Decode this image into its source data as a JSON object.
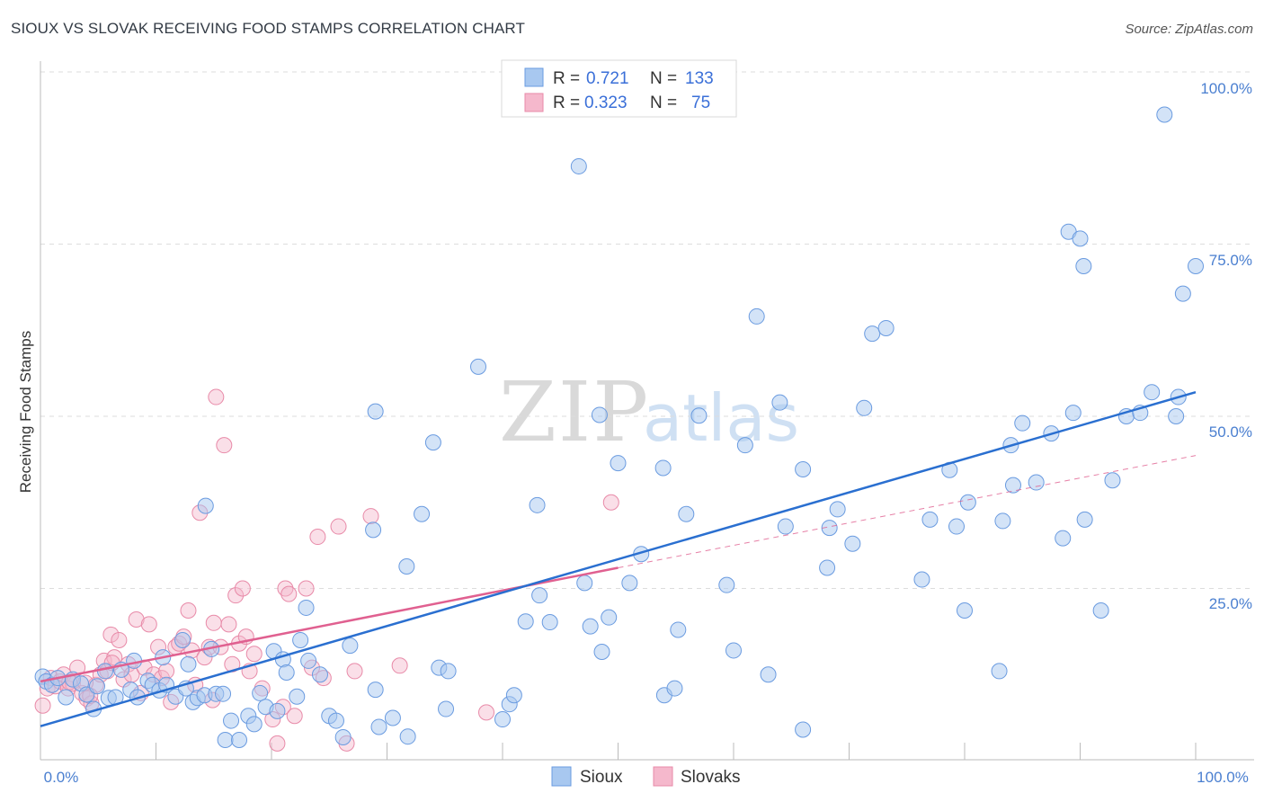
{
  "title": "SIOUX VS SLOVAK RECEIVING FOOD STAMPS CORRELATION CHART",
  "source": "Source: ZipAtlas.com",
  "watermark": {
    "zip": "ZIP",
    "atlas": "atlas"
  },
  "colors": {
    "sioux_fill": "#a8c8f0",
    "sioux_stroke": "#6a9be0",
    "sioux_line": "#2a6fd0",
    "slovaks_fill": "#f5b8cc",
    "slovaks_stroke": "#e88aa8",
    "slovaks_line": "#e06090",
    "tick": "#4a7fd0",
    "grid": "#dddddd"
  },
  "legend": {
    "rows": [
      {
        "r_label": "R =",
        "r_value": "0.721",
        "n_label": "N =",
        "n_value": "133"
      },
      {
        "r_label": "R =",
        "r_value": "0.323",
        "n_label": "N =",
        "n_value": "75"
      }
    ]
  },
  "bottom_legend": {
    "sioux": "Sioux",
    "slovaks": "Slovaks"
  },
  "chart_data": {
    "type": "scatter",
    "title": "SIOUX VS SLOVAK RECEIVING FOOD STAMPS CORRELATION CHART",
    "xlabel": "",
    "ylabel": "Receiving Food Stamps",
    "xlim": [
      0,
      100
    ],
    "ylim": [
      0,
      100
    ],
    "x_tick_labels": [
      "0.0%",
      "100.0%"
    ],
    "y_tick_labels": [
      "100.0%",
      "75.0%",
      "50.0%",
      "25.0%"
    ],
    "y_ticks": [
      100,
      75,
      50,
      25
    ],
    "grid": true,
    "series": [
      {
        "name": "Sioux",
        "r": 0.721,
        "n": 133,
        "trend": {
          "x": [
            0,
            100
          ],
          "y": [
            5.0,
            53.5
          ]
        },
        "points": [
          [
            0.2,
            12.2
          ],
          [
            0.5,
            11.5
          ],
          [
            1.0,
            11.0
          ],
          [
            1.5,
            12.0
          ],
          [
            2.2,
            9.2
          ],
          [
            2.8,
            11.8
          ],
          [
            3.5,
            11.2
          ],
          [
            4.0,
            9.6
          ],
          [
            4.6,
            7.5
          ],
          [
            4.9,
            10.8
          ],
          [
            5.6,
            13.0
          ],
          [
            5.9,
            9.1
          ],
          [
            6.5,
            9.2
          ],
          [
            7.0,
            13.2
          ],
          [
            7.8,
            10.3
          ],
          [
            8.1,
            14.5
          ],
          [
            8.4,
            9.2
          ],
          [
            9.3,
            11.6
          ],
          [
            9.7,
            11.0
          ],
          [
            10.3,
            10.2
          ],
          [
            10.6,
            15.0
          ],
          [
            10.9,
            11.0
          ],
          [
            11.7,
            9.3
          ],
          [
            12.3,
            17.5
          ],
          [
            12.6,
            10.5
          ],
          [
            12.8,
            14.0
          ],
          [
            13.2,
            8.5
          ],
          [
            13.6,
            9.1
          ],
          [
            14.2,
            9.5
          ],
          [
            14.3,
            37.0
          ],
          [
            14.8,
            16.2
          ],
          [
            15.2,
            9.7
          ],
          [
            15.8,
            9.7
          ],
          [
            16.0,
            3.0
          ],
          [
            16.5,
            5.8
          ],
          [
            17.2,
            3.0
          ],
          [
            18.0,
            6.5
          ],
          [
            18.5,
            5.3
          ],
          [
            19.0,
            9.8
          ],
          [
            19.5,
            7.8
          ],
          [
            20.2,
            15.9
          ],
          [
            20.5,
            7.2
          ],
          [
            21.0,
            14.7
          ],
          [
            21.3,
            12.8
          ],
          [
            22.2,
            9.3
          ],
          [
            22.5,
            17.5
          ],
          [
            23.0,
            22.2
          ],
          [
            23.2,
            14.5
          ],
          [
            24.2,
            12.5
          ],
          [
            25.0,
            6.5
          ],
          [
            25.6,
            5.8
          ],
          [
            26.2,
            3.4
          ],
          [
            26.8,
            16.7
          ],
          [
            29.0,
            10.3
          ],
          [
            29.3,
            4.9
          ],
          [
            29.0,
            50.7
          ],
          [
            28.8,
            33.5
          ],
          [
            30.5,
            6.2
          ],
          [
            31.7,
            28.2
          ],
          [
            31.8,
            3.5
          ],
          [
            33.0,
            35.8
          ],
          [
            34.0,
            46.2
          ],
          [
            34.5,
            13.5
          ],
          [
            35.1,
            7.5
          ],
          [
            35.3,
            13.0
          ],
          [
            37.9,
            57.2
          ],
          [
            40.0,
            6.0
          ],
          [
            40.6,
            8.2
          ],
          [
            41.0,
            9.5
          ],
          [
            42.0,
            20.2
          ],
          [
            43.0,
            37.1
          ],
          [
            43.2,
            24.0
          ],
          [
            44.1,
            20.1
          ],
          [
            46.6,
            86.3
          ],
          [
            47.1,
            25.8
          ],
          [
            47.6,
            19.5
          ],
          [
            48.4,
            50.2
          ],
          [
            48.6,
            15.8
          ],
          [
            49.2,
            20.8
          ],
          [
            50.0,
            43.2
          ],
          [
            51.0,
            25.8
          ],
          [
            52.0,
            30.0
          ],
          [
            53.9,
            42.5
          ],
          [
            54.0,
            9.5
          ],
          [
            54.9,
            10.5
          ],
          [
            55.2,
            19.0
          ],
          [
            55.9,
            35.8
          ],
          [
            57.0,
            50.1
          ],
          [
            59.4,
            25.5
          ],
          [
            60.0,
            16.0
          ],
          [
            61.0,
            45.8
          ],
          [
            62.0,
            64.5
          ],
          [
            63.0,
            12.5
          ],
          [
            64.0,
            52.0
          ],
          [
            64.5,
            34.0
          ],
          [
            66.0,
            42.3
          ],
          [
            66.0,
            4.5
          ],
          [
            68.1,
            28.0
          ],
          [
            68.3,
            33.8
          ],
          [
            69.0,
            36.5
          ],
          [
            70.3,
            31.5
          ],
          [
            71.3,
            51.2
          ],
          [
            72.0,
            62.0
          ],
          [
            73.2,
            62.8
          ],
          [
            76.3,
            26.3
          ],
          [
            77.0,
            35.0
          ],
          [
            78.7,
            42.2
          ],
          [
            79.3,
            34.0
          ],
          [
            80.0,
            21.8
          ],
          [
            80.3,
            37.5
          ],
          [
            83.0,
            13.0
          ],
          [
            83.3,
            34.8
          ],
          [
            84.0,
            45.8
          ],
          [
            84.2,
            40.0
          ],
          [
            85.0,
            49.0
          ],
          [
            86.2,
            40.4
          ],
          [
            87.5,
            47.5
          ],
          [
            88.5,
            32.3
          ],
          [
            89.0,
            76.8
          ],
          [
            89.4,
            50.5
          ],
          [
            90.0,
            75.8
          ],
          [
            90.3,
            71.8
          ],
          [
            90.4,
            35.0
          ],
          [
            91.8,
            21.8
          ],
          [
            92.8,
            40.7
          ],
          [
            94.0,
            50.0
          ],
          [
            95.2,
            50.5
          ],
          [
            96.2,
            53.5
          ],
          [
            97.3,
            93.8
          ],
          [
            98.3,
            50.0
          ],
          [
            98.5,
            52.8
          ],
          [
            98.9,
            67.8
          ],
          [
            100.0,
            71.8
          ]
        ]
      },
      {
        "name": "Slovaks",
        "r": 0.323,
        "n": 75,
        "trend": {
          "x": [
            0,
            50
          ],
          "y": [
            11.5,
            28.0
          ]
        },
        "trend_dashed": {
          "x": [
            50,
            100
          ],
          "y": [
            28.0,
            44.3
          ]
        },
        "points": [
          [
            0.2,
            8.0
          ],
          [
            0.6,
            10.5
          ],
          [
            0.9,
            12.0
          ],
          [
            1.3,
            10.8
          ],
          [
            1.7,
            11.5
          ],
          [
            2.0,
            12.5
          ],
          [
            2.4,
            10.5
          ],
          [
            2.8,
            11.2
          ],
          [
            3.2,
            13.5
          ],
          [
            3.6,
            9.8
          ],
          [
            4.0,
            9.0
          ],
          [
            4.4,
            8.3
          ],
          [
            4.8,
            11.0
          ],
          [
            5.2,
            12.5
          ],
          [
            5.5,
            14.5
          ],
          [
            5.8,
            13.0
          ],
          [
            6.1,
            18.3
          ],
          [
            6.4,
            15.0
          ],
          [
            6.8,
            17.5
          ],
          [
            7.2,
            11.8
          ],
          [
            7.6,
            14.0
          ],
          [
            7.9,
            12.5
          ],
          [
            8.3,
            20.5
          ],
          [
            8.7,
            9.8
          ],
          [
            9.0,
            13.5
          ],
          [
            9.4,
            19.8
          ],
          [
            9.8,
            12.5
          ],
          [
            10.2,
            16.5
          ],
          [
            10.5,
            12.0
          ],
          [
            10.9,
            13.0
          ],
          [
            11.3,
            8.5
          ],
          [
            11.7,
            16.5
          ],
          [
            12.0,
            17.0
          ],
          [
            12.4,
            18.0
          ],
          [
            12.8,
            21.8
          ],
          [
            13.1,
            16.0
          ],
          [
            13.4,
            11.0
          ],
          [
            13.8,
            36.0
          ],
          [
            14.2,
            15.0
          ],
          [
            14.6,
            16.5
          ],
          [
            14.9,
            8.8
          ],
          [
            15.2,
            52.8
          ],
          [
            15.6,
            16.5
          ],
          [
            15.9,
            45.8
          ],
          [
            16.3,
            19.8
          ],
          [
            16.6,
            14.0
          ],
          [
            16.9,
            24.0
          ],
          [
            17.2,
            17.0
          ],
          [
            17.5,
            25.0
          ],
          [
            17.8,
            18.0
          ],
          [
            18.1,
            13.0
          ],
          [
            18.5,
            15.5
          ],
          [
            19.2,
            10.5
          ],
          [
            20.1,
            6.0
          ],
          [
            20.5,
            2.5
          ],
          [
            21.0,
            7.8
          ],
          [
            21.2,
            25.0
          ],
          [
            21.5,
            24.2
          ],
          [
            22.0,
            6.5
          ],
          [
            23.0,
            25.0
          ],
          [
            23.5,
            13.5
          ],
          [
            24.0,
            32.5
          ],
          [
            24.5,
            12.0
          ],
          [
            25.8,
            34.0
          ],
          [
            26.5,
            2.5
          ],
          [
            27.2,
            13.0
          ],
          [
            28.6,
            35.5
          ],
          [
            31.1,
            13.8
          ],
          [
            38.6,
            7.0
          ],
          [
            49.4,
            37.5
          ],
          [
            15.0,
            20.0
          ],
          [
            6.2,
            14.2
          ],
          [
            2.5,
            11.4
          ],
          [
            4.3,
            9.4
          ],
          [
            3.9,
            11.3
          ]
        ]
      }
    ]
  }
}
